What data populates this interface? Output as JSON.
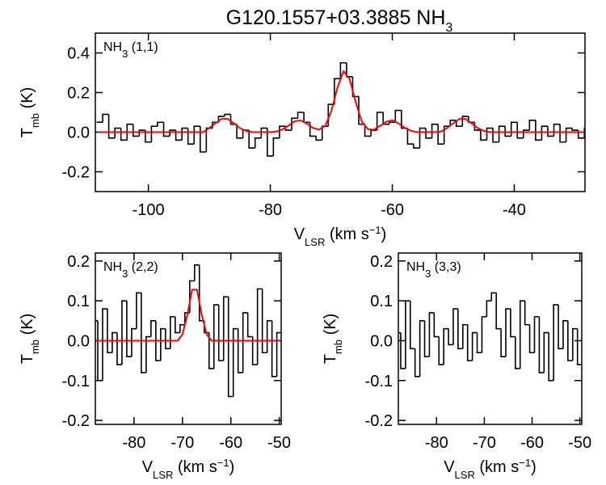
{
  "title": {
    "text": "G120.1557+03.3885 NH",
    "subscript": "3"
  },
  "chart_data": [
    {
      "type": "step",
      "annotation": {
        "text": "NH",
        "subscript": "3",
        "suffix": " (1,1)"
      },
      "xlabel": {
        "text": "V",
        "subscript": "LSR",
        "suffix": " (km s",
        "superscript": "−1",
        "end": ")"
      },
      "ylabel": {
        "text": "T",
        "subscript": "mb",
        "suffix": " (K)"
      },
      "xlim": [
        -108.7,
        -28.4
      ],
      "ylim": [
        -0.3,
        0.5
      ],
      "xticks": [
        -100,
        -80,
        -60,
        -40
      ],
      "yticks": [
        -0.2,
        {
          "value": 0,
          "label": "0.0"
        },
        0.2,
        0.4
      ],
      "x": [
        -108,
        -107,
        -106,
        -105,
        -104,
        -103,
        -102,
        -101,
        -100,
        -99,
        -98,
        -97,
        -96,
        -95,
        -94,
        -93,
        -92,
        -91,
        -90,
        -89,
        -88,
        -87,
        -86,
        -85,
        -84,
        -83,
        -82,
        -81,
        -80,
        -79,
        -78,
        -77,
        -76,
        -75,
        -74,
        -73,
        -72,
        -71,
        -70,
        -69,
        -68,
        -67,
        -66,
        -65,
        -64,
        -63,
        -62,
        -61,
        -60,
        -59,
        -58,
        -57,
        -56,
        -55,
        -54,
        -53,
        -52,
        -51,
        -50,
        -49,
        -48,
        -47,
        -46,
        -45,
        -44,
        -43,
        -42,
        -41,
        -40,
        -39,
        -38,
        -37,
        -36,
        -35,
        -34,
        -33,
        -32,
        -31,
        -30,
        -29,
        -28
      ],
      "series": [
        {
          "color": "#000000",
          "drawstyle": "steps-mid",
          "values": [
            0.05,
            0.09,
            -0.03,
            0.02,
            -0.04,
            0.04,
            -0.02,
            0.01,
            -0.05,
            0.03,
            0.05,
            -0.02,
            0.01,
            -0.04,
            0.02,
            -0.06,
            0.03,
            -0.1,
            0.02,
            0.05,
            0.08,
            0.09,
            0.04,
            -0.03,
            0.01,
            -0.08,
            -0.03,
            0.02,
            -0.12,
            -0.03,
            0.03,
            0.01,
            0.07,
            0.1,
            0.05,
            -0.02,
            -0.04,
            0.03,
            0.14,
            0.27,
            0.35,
            0.28,
            0.18,
            0.04,
            -0.02,
            0.01,
            0.1,
            0.04,
            0.05,
            0.11,
            0.02,
            -0.06,
            -0.08,
            0.02,
            -0.03,
            0.04,
            -0.06,
            0.03,
            0.06,
            0.03,
            0.08,
            0.05,
            0.01,
            -0.04,
            0.02,
            -0.05,
            0.03,
            -0.02,
            0.05,
            -0.03,
            0.01,
            0.06,
            -0.04,
            0.03,
            -0.02,
            0.04,
            -0.05,
            0.02,
            0.01,
            -0.03,
            0.02
          ]
        },
        {
          "color": "#ff0000",
          "drawstyle": "default",
          "values": [
            0,
            0,
            0,
            0,
            0,
            0,
            0,
            0,
            0,
            0,
            0,
            0,
            0,
            0,
            0,
            0,
            0,
            0,
            0.021,
            0.045,
            0.067,
            0.067,
            0.045,
            0.021,
            0.007,
            0,
            0,
            0,
            0,
            0.003,
            0.014,
            0.034,
            0.055,
            0.059,
            0.043,
            0.021,
            0.013,
            0.032,
            0.106,
            0.225,
            0.307,
            0.269,
            0.151,
            0.054,
            0.015,
            0.013,
            0.032,
            0.053,
            0.06,
            0.045,
            0.023,
            0.008,
            0,
            0,
            0,
            0,
            0.003,
            0.021,
            0.045,
            0.067,
            0.067,
            0.045,
            0.021,
            0.007,
            0,
            0,
            0,
            0,
            0,
            0,
            0,
            0,
            0,
            0,
            0,
            0,
            0,
            0,
            0,
            0,
            0
          ]
        }
      ]
    },
    {
      "type": "step",
      "annotation": {
        "text": "NH",
        "subscript": "3",
        "suffix": " (2,2)"
      },
      "xlabel": {
        "text": "V",
        "subscript": "LSR",
        "suffix": " (km s",
        "superscript": "−1",
        "end": ")"
      },
      "ylabel": {
        "text": "T",
        "subscript": "mb",
        "suffix": " (K)"
      },
      "xlim": [
        -88,
        -49.6
      ],
      "ylim": [
        -0.21,
        0.22
      ],
      "xticks": [
        -80,
        -70,
        -60,
        -50
      ],
      "yticks": [
        -0.2,
        -0.1,
        {
          "value": 0,
          "label": "0.0"
        },
        0.1,
        0.2
      ],
      "x": [
        -88,
        -87,
        -86,
        -85,
        -84,
        -83,
        -82,
        -81,
        -80,
        -79,
        -78,
        -77,
        -76,
        -75,
        -74,
        -73,
        -72,
        -71,
        -70,
        -69,
        -68,
        -67,
        -66,
        -65,
        -64,
        -63,
        -62,
        -61,
        -60,
        -59,
        -58,
        -57,
        -56,
        -55,
        -54,
        -53,
        -52,
        -51,
        -50
      ],
      "series": [
        {
          "color": "#000000",
          "drawstyle": "steps-mid",
          "values": [
            0.05,
            -0.1,
            0.08,
            -0.03,
            0.02,
            -0.06,
            0.1,
            -0.04,
            0.03,
            0.12,
            -0.08,
            0.01,
            0.05,
            -0.05,
            0.03,
            -0.02,
            0.06,
            0.02,
            0.04,
            0.07,
            0.15,
            0.19,
            0.05,
            0.02,
            -0.07,
            0.09,
            -0.05,
            0.11,
            -0.14,
            0.03,
            -0.08,
            0.07,
            0.01,
            -0.06,
            0.13,
            -0.03,
            0.05,
            -0.09,
            0.02
          ]
        },
        {
          "color": "#ff0000",
          "drawstyle": "default",
          "values": [
            0,
            0,
            0,
            0,
            0,
            0,
            0,
            0,
            0,
            0,
            0,
            0,
            0,
            0,
            0,
            0,
            0,
            0,
            0.016,
            0.064,
            0.128,
            0.128,
            0.064,
            0.016,
            0,
            0,
            0,
            0,
            0,
            0,
            0,
            0,
            0,
            0,
            0,
            0,
            0,
            0,
            0
          ]
        }
      ]
    },
    {
      "type": "step",
      "annotation": {
        "text": "NH",
        "subscript": "3",
        "suffix": " (3,3)"
      },
      "xlabel": {
        "text": "V",
        "subscript": "LSR",
        "suffix": " (km s",
        "superscript": "−1",
        "end": ")"
      },
      "ylabel": {
        "text": "T",
        "subscript": "mb",
        "suffix": " (K)"
      },
      "xlim": [
        -88,
        -49.6
      ],
      "ylim": [
        -0.21,
        0.22
      ],
      "xticks": [
        -80,
        -70,
        -60,
        -50
      ],
      "yticks": [
        -0.2,
        -0.1,
        {
          "value": 0,
          "label": "0.0"
        },
        0.1,
        0.2
      ],
      "x": [
        -88,
        -87,
        -86,
        -85,
        -84,
        -83,
        -82,
        -81,
        -80,
        -79,
        -78,
        -77,
        -76,
        -75,
        -74,
        -73,
        -72,
        -71,
        -70,
        -69,
        -68,
        -67,
        -66,
        -65,
        -64,
        -63,
        -62,
        -61,
        -60,
        -59,
        -58,
        -57,
        -56,
        -55,
        -54,
        -53,
        -52,
        -51,
        -50
      ],
      "series": [
        {
          "color": "#000000",
          "drawstyle": "steps-mid",
          "values": [
            0.02,
            -0.07,
            0.1,
            -0.02,
            -0.09,
            0.05,
            -0.04,
            0.07,
            0.01,
            -0.06,
            0.03,
            -0.01,
            0.08,
            -0.02,
            0.04,
            -0.05,
            0.02,
            -0.03,
            0.06,
            0.1,
            0.12,
            0.03,
            -0.04,
            0.08,
            0.01,
            -0.07,
            0.1,
            0.04,
            -0.03,
            0.06,
            -0.08,
            0.02,
            -0.1,
            0.09,
            -0.02,
            0.05,
            -0.05,
            0.03,
            -0.06
          ]
        }
      ]
    }
  ]
}
